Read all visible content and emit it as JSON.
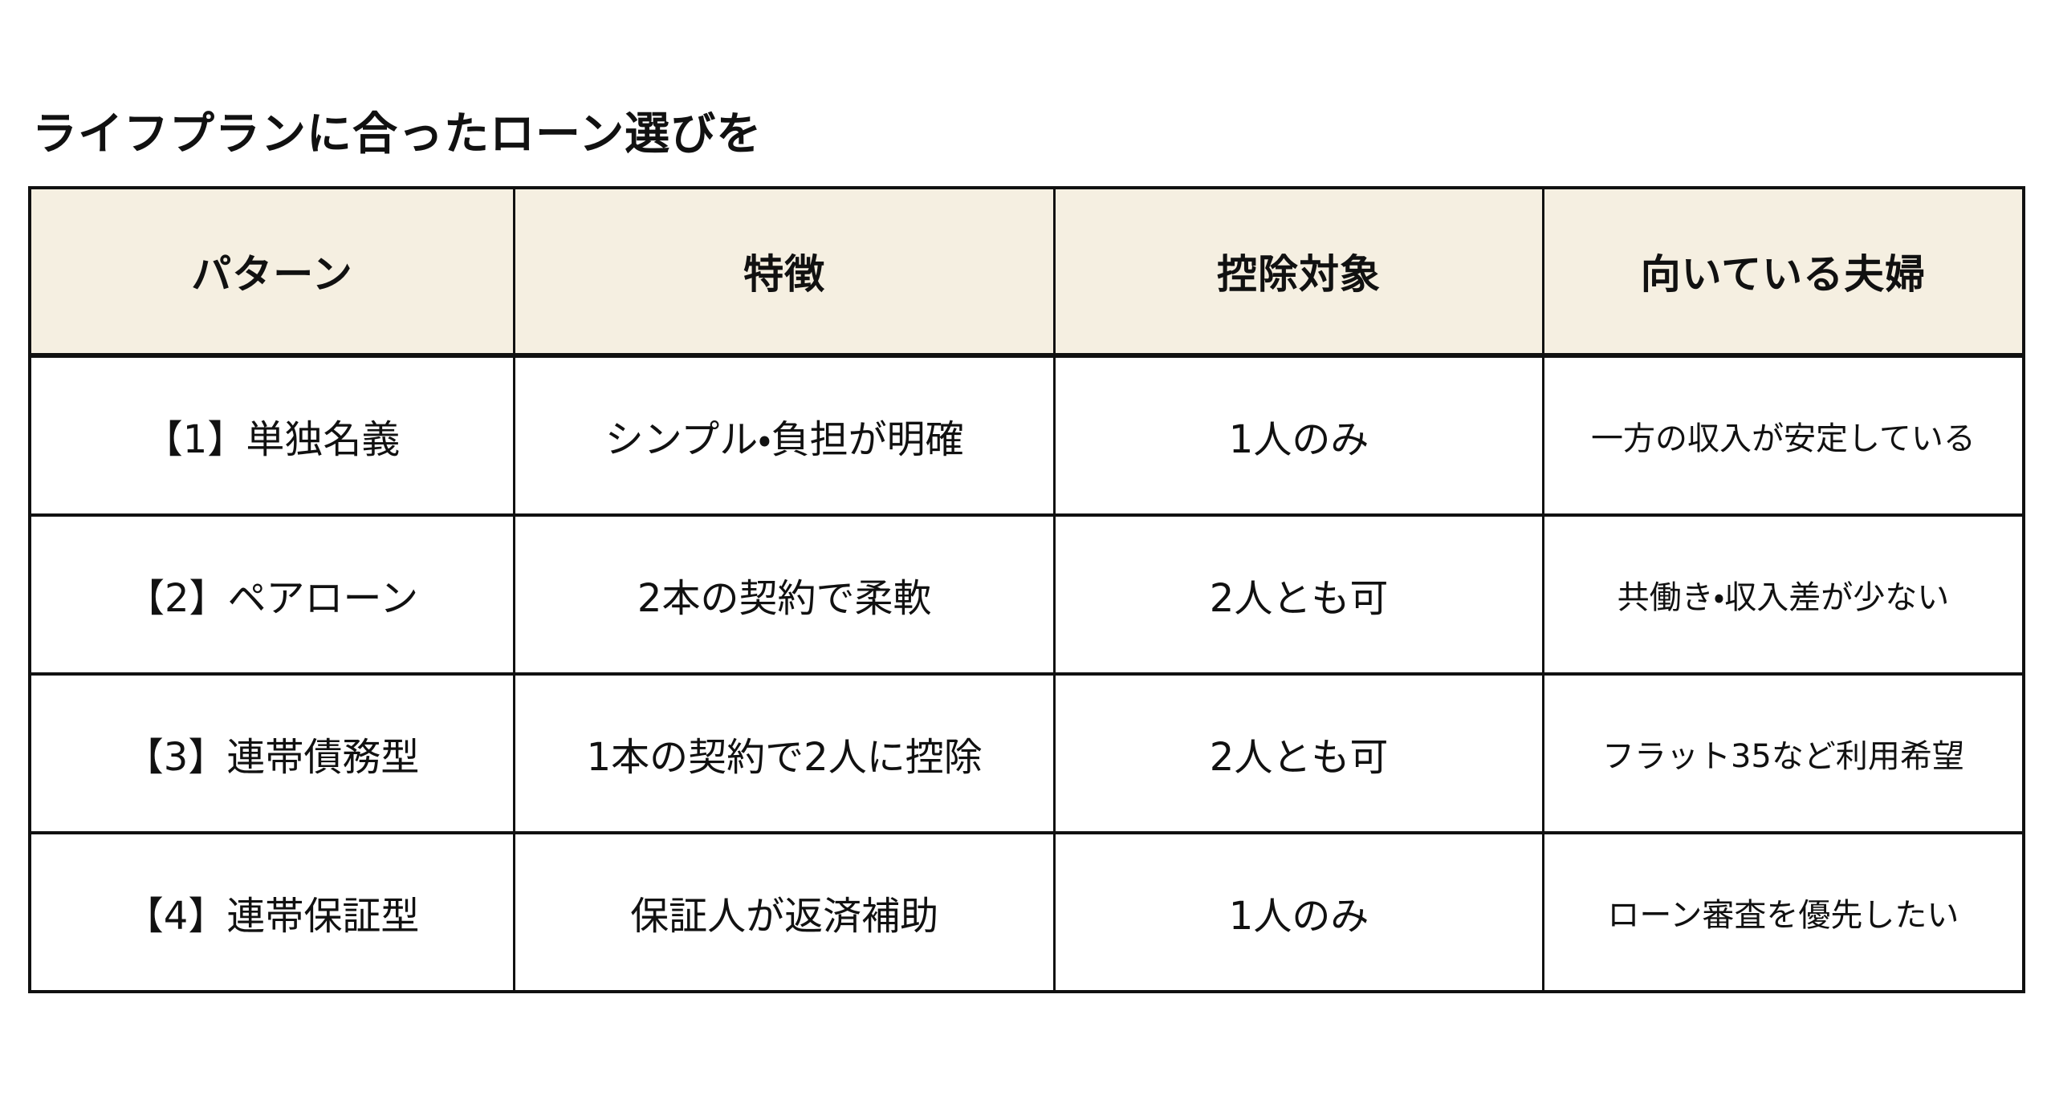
{
  "page": {
    "title": "ライフプランに合ったローン選びを"
  },
  "table": {
    "headers": [
      {
        "label": "パターン"
      },
      {
        "label": "特徴"
      },
      {
        "label": "控除対象"
      },
      {
        "label": "向いている夫婦"
      }
    ],
    "rows": [
      {
        "pattern": "【1】単独名義",
        "feature": "シンプル・負担が明確",
        "deduction": "1人のみ",
        "suited": "一方の収入が安定している"
      },
      {
        "pattern": "【2】ペアローン",
        "feature": "2本の契約で柔軟",
        "deduction": "2人とも可",
        "suited": "共働き・収入差が少ない"
      },
      {
        "pattern": "【3】連帯債務型",
        "feature": "1本の契約で2人に控除",
        "deduction": "2人とも可",
        "suited": "フラット35など利用希望"
      },
      {
        "pattern": "【4】連帯保証型",
        "feature": "保証人が返済補助",
        "deduction": "1人のみ",
        "suited": "ローン審査を優先したい"
      }
    ]
  },
  "colors": {
    "page_bg": "#FFFFFF",
    "header_bg": "#F5EFE1",
    "border": "#111111",
    "text": "#111111"
  }
}
